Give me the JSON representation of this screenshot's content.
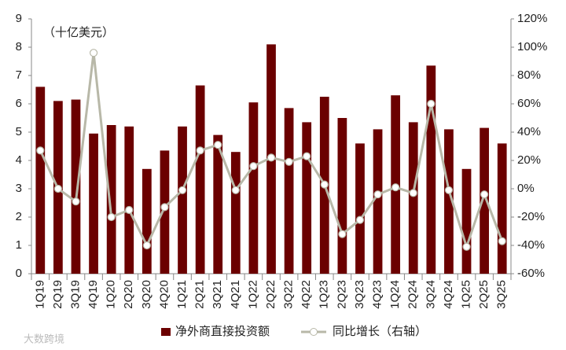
{
  "chart_data": {
    "type": "bar_line",
    "annotation": "（十亿美元）",
    "watermark": "大数跨境",
    "categories": [
      "1Q19",
      "2Q19",
      "3Q19",
      "4Q19",
      "1Q20",
      "2Q20",
      "3Q20",
      "4Q20",
      "1Q21",
      "2Q21",
      "3Q21",
      "4Q21",
      "1Q22",
      "2Q22",
      "3Q22",
      "4Q22",
      "1Q23",
      "2Q23",
      "3Q23",
      "4Q23",
      "1Q24",
      "2Q24",
      "3Q24",
      "4Q24",
      "1Q25",
      "2Q25",
      "3Q25"
    ],
    "series": [
      {
        "name": "净外商直接投资额",
        "type": "bar",
        "color": "#6b0000",
        "values": [
          6.6,
          6.1,
          6.15,
          4.95,
          5.25,
          5.2,
          3.7,
          4.35,
          5.2,
          6.65,
          4.9,
          4.3,
          6.05,
          8.1,
          5.85,
          5.35,
          6.25,
          5.5,
          4.6,
          5.1,
          6.3,
          5.35,
          7.35,
          5.1,
          3.7,
          5.15,
          4.6
        ]
      },
      {
        "name": "同比增长（右轴）",
        "type": "line",
        "axis": "y2",
        "color": "#b8b8a8",
        "values": [
          27,
          0,
          -9,
          96,
          -20,
          -15,
          -40,
          -13,
          -1,
          27,
          31,
          -1,
          16,
          22,
          19,
          23,
          3,
          -32,
          -22,
          -4,
          1,
          -3,
          60,
          -1,
          -41,
          -4,
          -37
        ]
      }
    ],
    "ylim": [
      0,
      9
    ],
    "yticks": [
      0,
      1,
      2,
      3,
      4,
      5,
      6,
      7,
      8,
      9
    ],
    "y2lim": [
      -60,
      120
    ],
    "y2ticks": [
      {
        "value": -60,
        "label": "-60%"
      },
      {
        "value": -40,
        "label": "-40%"
      },
      {
        "value": -20,
        "label": "-20%"
      },
      {
        "value": 0,
        "label": "0%"
      },
      {
        "value": 20,
        "label": "20%"
      },
      {
        "value": 40,
        "label": "40%"
      },
      {
        "value": 60,
        "label": "60%"
      },
      {
        "value": 80,
        "label": "80%"
      },
      {
        "value": 100,
        "label": "100%"
      },
      {
        "value": 120,
        "label": "120%"
      }
    ],
    "grid": false,
    "legend": "bottom"
  }
}
